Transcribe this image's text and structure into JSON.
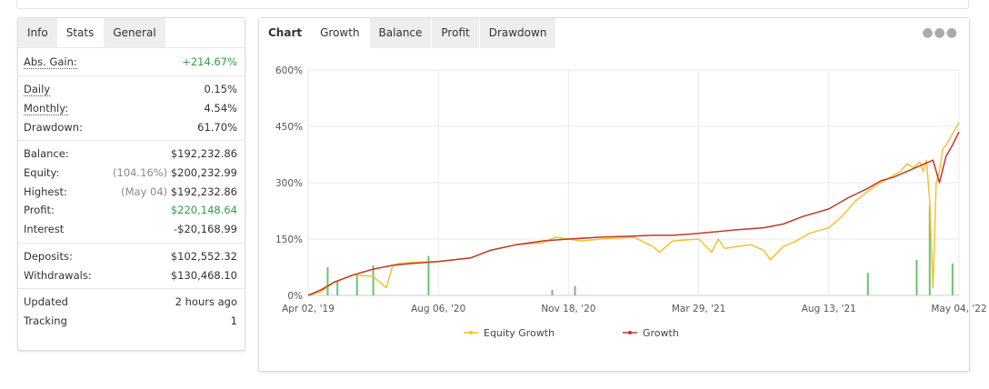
{
  "stats_panel": {
    "tabs": [
      {
        "label": "Info"
      },
      {
        "label": "Stats"
      },
      {
        "label": "General"
      }
    ],
    "abs_gain": {
      "label": "Abs. Gain:",
      "value": "+214.67%"
    },
    "daily": {
      "label": "Daily",
      "value": "0.15%"
    },
    "monthly": {
      "label": "Monthly:",
      "value": "4.54%"
    },
    "drawdown": {
      "label": "Drawdown:",
      "value": "61.70%"
    },
    "balance": {
      "label": "Balance:",
      "value": "$192,232.86"
    },
    "equity": {
      "label": "Equity:",
      "note": "(104.16%)",
      "value": "$200,232.99"
    },
    "highest": {
      "label": "Highest:",
      "note": "(May 04)",
      "value": "$192,232.86"
    },
    "profit": {
      "label": "Profit:",
      "value": "$220,148.64"
    },
    "interest": {
      "label": "Interest",
      "value": "-$20,168.99"
    },
    "deposits": {
      "label": "Deposits:",
      "value": "$102,552.32"
    },
    "withdrawals": {
      "label": "Withdrawals:",
      "value": "$130,468.10"
    },
    "updated": {
      "label": "Updated",
      "value": "2 hours ago"
    },
    "tracking": {
      "label": "Tracking",
      "value": "1"
    }
  },
  "chart_panel": {
    "tabs": [
      {
        "label": "Chart"
      },
      {
        "label": "Growth"
      },
      {
        "label": "Balance"
      },
      {
        "label": "Profit"
      },
      {
        "label": "Drawdown"
      }
    ],
    "menu_icon": "ellipsis-icon"
  },
  "colors": {
    "equity": "#f2c230",
    "growth": "#c0392b",
    "bars": "#6cc36c",
    "positive": "#2ea043"
  },
  "chart_data": {
    "type": "line",
    "x_tick_labels": [
      "Apr 02, '19",
      "Aug 06, '20",
      "Nov 18, '20",
      "Mar 29, '21",
      "Aug 13, '21",
      "May 04, '22"
    ],
    "y_tick_labels": [
      "0%",
      "150%",
      "300%",
      "450%",
      "600%"
    ],
    "ylim": [
      0,
      600
    ],
    "grid": true,
    "legend_position": "bottom",
    "series": [
      {
        "name": "Equity Growth",
        "color": "#f2c230",
        "x": [
          0,
          0.02,
          0.04,
          0.07,
          0.1,
          0.12,
          0.13,
          0.14,
          0.16,
          0.2,
          0.25,
          0.28,
          0.32,
          0.36,
          0.38,
          0.42,
          0.45,
          0.5,
          0.53,
          0.54,
          0.56,
          0.6,
          0.62,
          0.63,
          0.64,
          0.66,
          0.68,
          0.7,
          0.71,
          0.73,
          0.75,
          0.77,
          0.8,
          0.82,
          0.84,
          0.87,
          0.88,
          0.9,
          0.91,
          0.92,
          0.93,
          0.94,
          0.945,
          0.95,
          0.955,
          0.96,
          0.965,
          0.97,
          0.975,
          0.98,
          1.0
        ],
        "values": [
          0,
          10,
          35,
          55,
          50,
          20,
          80,
          85,
          88,
          90,
          100,
          120,
          135,
          140,
          155,
          145,
          150,
          155,
          130,
          115,
          145,
          150,
          115,
          150,
          125,
          130,
          135,
          120,
          95,
          130,
          145,
          165,
          180,
          210,
          250,
          290,
          300,
          320,
          330,
          350,
          340,
          355,
          330,
          360,
          250,
          20,
          300,
          330,
          390,
          400,
          460
        ]
      },
      {
        "name": "Growth",
        "color": "#c0392b",
        "x": [
          0,
          0.02,
          0.04,
          0.07,
          0.1,
          0.13,
          0.16,
          0.2,
          0.25,
          0.28,
          0.32,
          0.36,
          0.4,
          0.45,
          0.5,
          0.53,
          0.56,
          0.6,
          0.63,
          0.66,
          0.7,
          0.73,
          0.76,
          0.8,
          0.83,
          0.86,
          0.88,
          0.9,
          0.92,
          0.94,
          0.96,
          0.97,
          0.98,
          0.99,
          1.0
        ],
        "values": [
          0,
          15,
          35,
          55,
          70,
          80,
          85,
          90,
          100,
          120,
          135,
          145,
          150,
          155,
          158,
          160,
          160,
          165,
          170,
          175,
          180,
          190,
          210,
          230,
          260,
          285,
          305,
          315,
          330,
          345,
          360,
          300,
          370,
          400,
          435
        ]
      }
    ],
    "bars": {
      "name": "",
      "color": "#6cc36c",
      "x": [
        0.03,
        0.045,
        0.075,
        0.1,
        0.185,
        0.375,
        0.41,
        0.86,
        0.935,
        0.955,
        0.99
      ],
      "values": [
        75,
        40,
        55,
        80,
        105,
        15,
        25,
        60,
        95,
        240,
        85
      ]
    }
  }
}
